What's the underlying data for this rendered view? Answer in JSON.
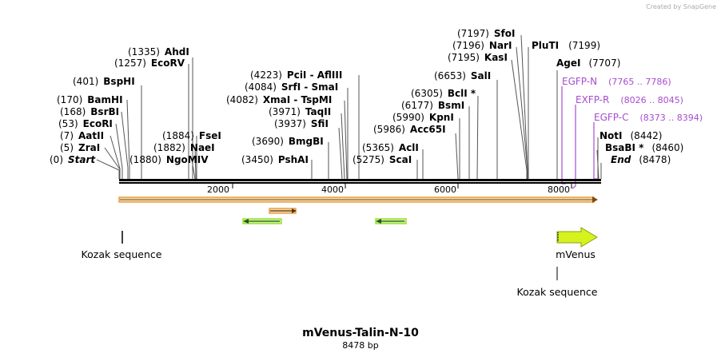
{
  "watermark": "Created by SnapGene",
  "title": "mVenus-Talin-N-10",
  "length_label": "8478 bp",
  "colors": {
    "backbone": "#000000",
    "primer": "#a64dcf",
    "orf": "#e6a04a",
    "orf_fill": "#f5d9a8",
    "green_feature": "#9be03a",
    "mvenus": "#d6f21e"
  },
  "ruler": {
    "ticks": [
      "2000",
      "4000",
      "6000",
      "8000"
    ]
  },
  "enzymes": [
    {
      "pos": "(0)",
      "name": "Start",
      "style": "bi"
    },
    {
      "pos": "(5)",
      "name": "ZraI"
    },
    {
      "pos": "(7)",
      "name": "AatII"
    },
    {
      "pos": "(53)",
      "name": "EcoRI"
    },
    {
      "pos": "(168)",
      "name": "BsrBI"
    },
    {
      "pos": "(170)",
      "name": "BamHI"
    },
    {
      "pos": "(401)",
      "name": "BspHI"
    },
    {
      "pos": "(1257)",
      "name": "EcoRV"
    },
    {
      "pos": "(1335)",
      "name": "AhdI"
    },
    {
      "pos": "(1880)",
      "name": "NgoMIV"
    },
    {
      "pos": "(1882)",
      "name": "NaeI"
    },
    {
      "pos": "(1884)",
      "name": "FseI"
    },
    {
      "pos": "(3450)",
      "name": "PshAI"
    },
    {
      "pos": "(3690)",
      "name": "BmgBI"
    },
    {
      "pos": "(3937)",
      "name": "SfiI"
    },
    {
      "pos": "(3971)",
      "name": "TaqII"
    },
    {
      "pos": "(4082)",
      "name": "XmaI  - TspMI"
    },
    {
      "pos": "(4084)",
      "name": "SrfI  - SmaI"
    },
    {
      "pos": "(4223)",
      "name": "PciI  - AflIII"
    },
    {
      "pos": "(5275)",
      "name": "ScaI"
    },
    {
      "pos": "(5365)",
      "name": "AclI"
    },
    {
      "pos": "(5986)",
      "name": "Acc65I"
    },
    {
      "pos": "(5990)",
      "name": "KpnI"
    },
    {
      "pos": "(6177)",
      "name": "BsmI"
    },
    {
      "pos": "(6305)",
      "name": "BclI *"
    },
    {
      "pos": "(6653)",
      "name": "SalI"
    },
    {
      "pos": "(7195)",
      "name": "KasI"
    },
    {
      "pos": "(7196)",
      "name": "NarI"
    },
    {
      "pos": "(7197)",
      "name": "SfoI"
    },
    {
      "pos": "(7199)",
      "name": "PluTI"
    },
    {
      "pos": "(7707)",
      "name": "AgeI"
    },
    {
      "pos": "(8442)",
      "name": "NotI"
    },
    {
      "pos": "(8460)",
      "name": "BsaBI *"
    },
    {
      "pos": "(8478)",
      "name": "End",
      "style": "bi"
    }
  ],
  "primers": [
    {
      "name": "EGFP-N",
      "range": "(7765 .. 7786)"
    },
    {
      "name": "EXFP-R",
      "range": "(8026 .. 8045)"
    },
    {
      "name": "EGFP-C",
      "range": "(8373 .. 8394)"
    }
  ],
  "features": {
    "kozak_left": "Kozak sequence",
    "mvenus": "mVenus",
    "kozak_right": "Kozak sequence"
  }
}
